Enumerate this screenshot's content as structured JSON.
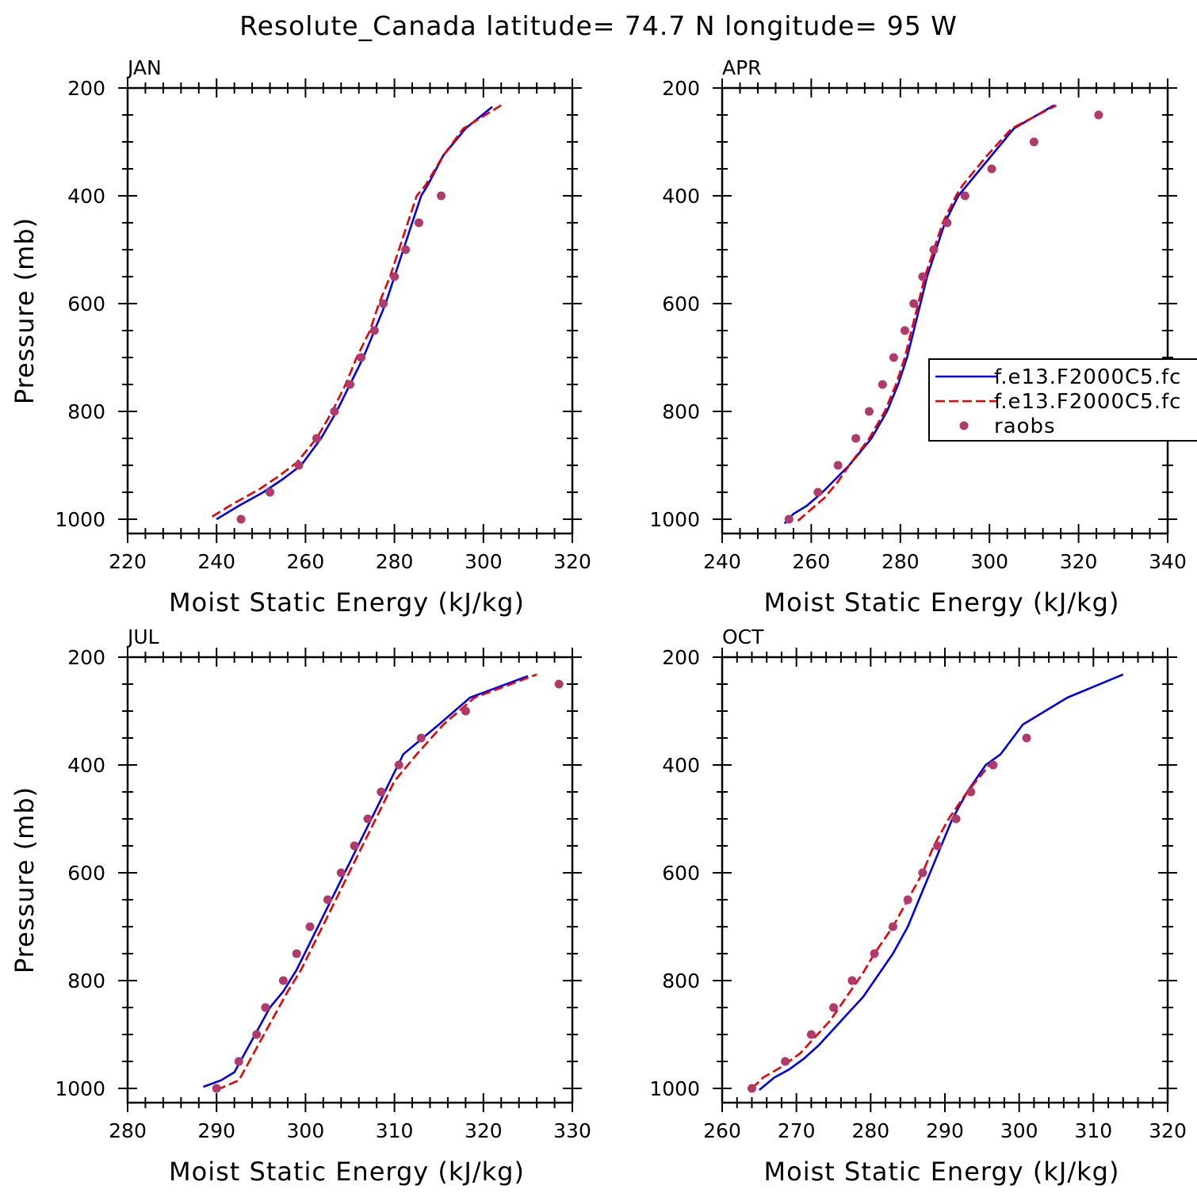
{
  "title": "Resolute_Canada  latitude= 74.7 N longitude= 95 W",
  "colors": {
    "model1": "#0000ee",
    "model2": "#ee0000",
    "raobs": "#b03a6a"
  },
  "legend": {
    "entries": [
      {
        "label": "f.e13.F2000C5.fc",
        "style": "solid",
        "series": "model1"
      },
      {
        "label": "f.e13.F2000C5.fc",
        "style": "dashed",
        "series": "model2"
      },
      {
        "label": "raobs",
        "style": "dot",
        "series": "raobs"
      }
    ]
  },
  "chart_data": [
    {
      "type": "line",
      "panel": "JAN",
      "title": "JAN",
      "xlabel": "Moist Static Energy (kJ/kg)",
      "ylabel": "Pressure (mb)",
      "xlim": [
        220,
        320
      ],
      "ylim": [
        1000,
        200
      ],
      "xticks": [
        220,
        240,
        260,
        280,
        300,
        320
      ],
      "yticks": [
        200,
        400,
        600,
        800,
        1000
      ],
      "series": [
        {
          "name": "f.e13.F2000C5.fc (solid)",
          "pressure": [
            1000,
            975,
            950,
            925,
            900,
            850,
            800,
            750,
            700,
            650,
            600,
            550,
            500,
            450,
            400,
            380,
            325,
            275,
            235
          ],
          "values": [
            240,
            245,
            250.5,
            255,
            259,
            263.5,
            267,
            270,
            273,
            275.5,
            278,
            280,
            282,
            284,
            286,
            287.5,
            291,
            296,
            302
          ]
        },
        {
          "name": "f.e13.F2000C5.fc (dashed)",
          "pressure": [
            995,
            970,
            945,
            920,
            895,
            850,
            800,
            750,
            700,
            650,
            600,
            550,
            500,
            450,
            400,
            380,
            325,
            275,
            232
          ],
          "values": [
            239,
            244,
            249.5,
            254,
            258,
            262.5,
            266,
            269,
            271.5,
            274.5,
            276.5,
            279,
            281,
            283,
            285,
            287,
            291,
            295.5,
            304
          ]
        },
        {
          "name": "raobs",
          "pressure": [
            1000,
            950,
            900,
            850,
            800,
            750,
            700,
            650,
            600,
            550,
            500,
            450,
            400
          ],
          "values": [
            245.5,
            252,
            258.5,
            262.5,
            266.5,
            270,
            272.5,
            275.5,
            277.5,
            280,
            282.5,
            285.5,
            290.5
          ]
        }
      ]
    },
    {
      "type": "line",
      "panel": "APR",
      "title": "APR",
      "xlabel": "Moist Static Energy (kJ/kg)",
      "ylabel": "",
      "xlim": [
        240,
        340
      ],
      "ylim": [
        1000,
        200
      ],
      "xticks": [
        240,
        260,
        280,
        300,
        320,
        340
      ],
      "yticks": [
        200,
        400,
        600,
        800,
        1000
      ],
      "series": [
        {
          "name": "f.e13.F2000C5.fc (solid)",
          "pressure": [
            1008,
            990,
            975,
            950,
            925,
            900,
            850,
            800,
            750,
            700,
            650,
            600,
            550,
            500,
            450,
            400,
            380,
            325,
            275,
            232
          ],
          "values": [
            254,
            256,
            259,
            262.5,
            265.5,
            268.5,
            273.5,
            277,
            279.5,
            281.5,
            283,
            284.5,
            286,
            288,
            290,
            293,
            295,
            300.5,
            305.5,
            314.5
          ]
        },
        {
          "name": "f.e13.F2000C5.fc (dashed)",
          "pressure": [
            1003,
            985,
            960,
            930,
            900,
            850,
            800,
            750,
            700,
            650,
            600,
            550,
            500,
            450,
            400,
            380,
            325,
            275,
            232
          ],
          "values": [
            257,
            259.5,
            263,
            266,
            268.5,
            273,
            276.5,
            279,
            281,
            282.5,
            284,
            285.5,
            287.5,
            289.5,
            292.5,
            294,
            299.5,
            305,
            315
          ]
        },
        {
          "name": "raobs",
          "pressure": [
            1000,
            950,
            900,
            850,
            800,
            750,
            700,
            650,
            600,
            550,
            500,
            450,
            400,
            350,
            300,
            250
          ],
          "values": [
            255,
            261.5,
            266,
            270,
            273,
            276,
            278.5,
            281,
            283,
            285,
            287.5,
            290.5,
            294.5,
            300.5,
            310,
            324.5
          ]
        }
      ]
    },
    {
      "type": "line",
      "panel": "JUL",
      "title": "JUL",
      "xlabel": "Moist Static Energy (kJ/kg)",
      "ylabel": "Pressure (mb)",
      "xlim": [
        280,
        330
      ],
      "ylim": [
        1000,
        200
      ],
      "xticks": [
        280,
        290,
        300,
        310,
        320,
        330
      ],
      "yticks": [
        200,
        400,
        600,
        800,
        1000
      ],
      "series": [
        {
          "name": "f.e13.F2000C5.fc (solid)",
          "pressure": [
            997,
            985,
            970,
            940,
            910,
            880,
            850,
            820,
            780,
            730,
            680,
            630,
            580,
            530,
            480,
            430,
            380,
            325,
            275,
            235
          ],
          "values": [
            288.5,
            290.5,
            292,
            293,
            294,
            295,
            296,
            297.5,
            299,
            300.5,
            302,
            303.5,
            305,
            306.5,
            308,
            309.5,
            311,
            315,
            318.5,
            325
          ]
        },
        {
          "name": "f.e13.F2000C5.fc (dashed)",
          "pressure": [
            1003,
            985,
            970,
            940,
            910,
            880,
            850,
            820,
            780,
            730,
            680,
            630,
            580,
            530,
            480,
            430,
            380,
            325,
            275,
            232
          ],
          "values": [
            290,
            292.5,
            293,
            294,
            295,
            296,
            297,
            298,
            299.5,
            301,
            302.5,
            304,
            305.5,
            307,
            308.5,
            310,
            312.5,
            315.5,
            319,
            326
          ]
        },
        {
          "name": "raobs",
          "pressure": [
            1000,
            950,
            900,
            850,
            800,
            750,
            700,
            650,
            600,
            550,
            500,
            450,
            400,
            350,
            300,
            250
          ],
          "values": [
            290,
            292.5,
            294.5,
            295.5,
            297.5,
            299,
            300.5,
            302.5,
            304,
            305.5,
            307,
            308.5,
            310.5,
            313,
            318,
            328.5
          ]
        }
      ]
    },
    {
      "type": "line",
      "panel": "OCT",
      "title": "OCT",
      "xlabel": "Moist Static Energy (kJ/kg)",
      "ylabel": "",
      "xlim": [
        260,
        320
      ],
      "ylim": [
        1000,
        200
      ],
      "xticks": [
        260,
        270,
        280,
        290,
        300,
        310,
        320
      ],
      "yticks": [
        200,
        400,
        600,
        800,
        1000
      ],
      "series": [
        {
          "name": "f.e13.F2000C5.fc (solid)",
          "pressure": [
            1003,
            980,
            965,
            945,
            920,
            890,
            860,
            830,
            800,
            750,
            700,
            650,
            600,
            550,
            500,
            450,
            400,
            380,
            325,
            275,
            232
          ],
          "values": [
            265,
            267,
            269,
            271,
            273,
            275,
            277,
            279,
            280.5,
            283,
            285,
            286.5,
            288,
            289.5,
            291,
            293,
            295.5,
            297.5,
            300.5,
            306.5,
            314
          ]
        },
        {
          "name": "f.e13.F2000C5.fc (dashed)",
          "pressure": [
            1000,
            980,
            960,
            935,
            905,
            875,
            845,
            815,
            785,
            750,
            700,
            650,
            600,
            550,
            500,
            450,
            400
          ],
          "values": [
            264,
            265.5,
            268,
            270.5,
            272.5,
            274.5,
            276,
            277.5,
            279,
            280.5,
            283,
            285,
            287,
            288.5,
            290.5,
            293,
            296
          ]
        },
        {
          "name": "raobs",
          "pressure": [
            1000,
            950,
            900,
            850,
            800,
            750,
            700,
            650,
            600,
            550,
            500,
            450,
            400,
            350
          ],
          "values": [
            264,
            268.5,
            272,
            275,
            277.5,
            280.5,
            283,
            285,
            287,
            289,
            291.5,
            293.5,
            296.5,
            301
          ]
        }
      ]
    }
  ]
}
